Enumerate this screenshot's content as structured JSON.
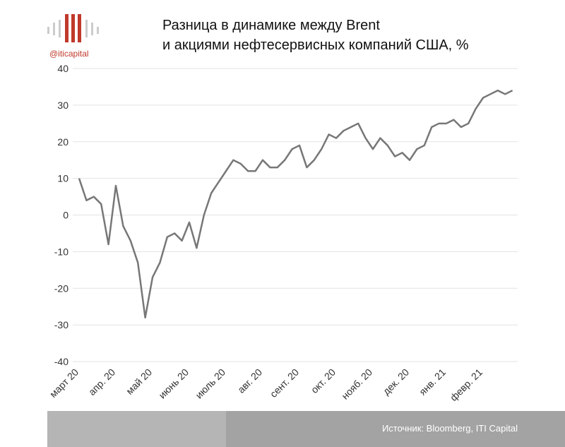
{
  "logo_text": "@iticapital",
  "source": "Источник: Bloomberg, ITI Capital",
  "chart_data": {
    "type": "line",
    "title": [
      "Разница в динамике между Brent",
      "и акциями нефтесервисных компаний США, %"
    ],
    "categories": [
      "март 20",
      null,
      null,
      null,
      null,
      "апр. 20",
      null,
      null,
      null,
      null,
      "май 20",
      null,
      null,
      null,
      null,
      "июнь 20",
      null,
      null,
      null,
      null,
      "июль 20",
      null,
      null,
      null,
      null,
      "авг. 20",
      null,
      null,
      null,
      null,
      "сент. 20",
      null,
      null,
      null,
      null,
      "окт. 20",
      null,
      null,
      null,
      null,
      "нояб. 20",
      null,
      null,
      null,
      null,
      "дек. 20",
      null,
      null,
      null,
      null,
      "янв. 21",
      null,
      null,
      null,
      null,
      "февр. 21",
      null,
      null,
      null,
      null
    ],
    "series": [
      {
        "color": "#777777",
        "values": [
          10,
          4,
          5,
          3,
          -8,
          8,
          -3,
          -7,
          -13,
          -28,
          -17,
          -13,
          -6,
          -5,
          -7,
          -2,
          -9,
          0,
          6,
          9,
          12,
          15,
          14,
          12,
          12,
          15,
          13,
          13,
          15,
          18,
          19,
          13,
          15,
          18,
          22,
          21,
          23,
          24,
          25,
          21,
          18,
          21,
          19,
          16,
          17,
          15,
          18,
          19,
          24,
          25,
          25,
          26,
          24,
          25,
          29,
          32,
          33,
          34,
          33,
          34
        ]
      }
    ],
    "ylim": [
      -40,
      40
    ],
    "yticks": [
      -40,
      -30,
      -20,
      -10,
      0,
      10,
      20,
      30,
      40
    ],
    "grid": true
  }
}
